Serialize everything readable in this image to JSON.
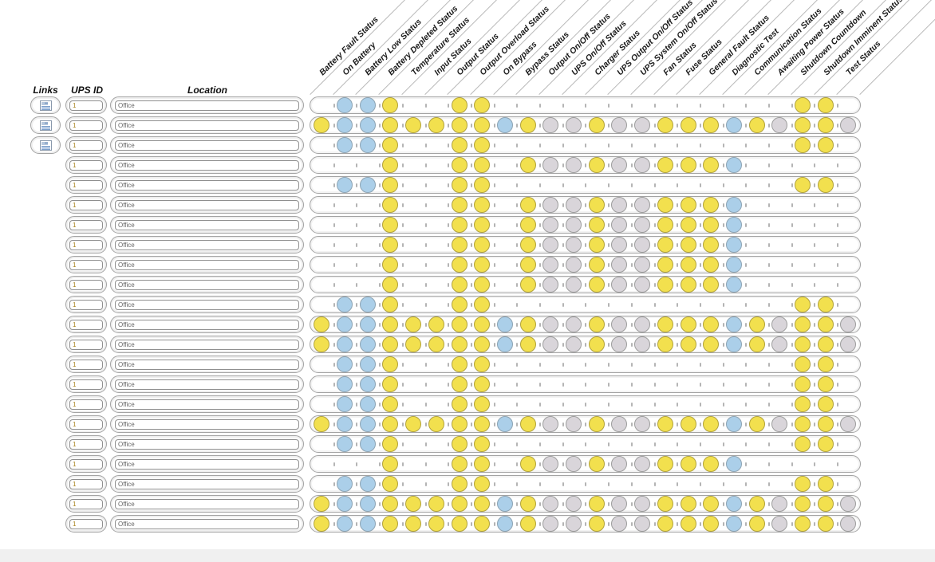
{
  "page": {
    "background": "#ffffff",
    "footer_background": "#f0f0f0"
  },
  "table": {
    "left_headers": {
      "links": "Links",
      "ups_id": "UPS ID",
      "location": "Location"
    },
    "columns": [
      "Battery Fault Status",
      "On Battery",
      "Battery Low Status",
      "Battery Depleted Status",
      "Temperature Status",
      "Input Status",
      "Output Status",
      "Output Overload Status",
      "On Bypass",
      "Bypass Status",
      "Output On/Off Status",
      "UPS On/Off Status",
      "Charger Status",
      "UPS Output On/Off Status",
      "UPS System On/Off Status",
      "Fan Status",
      "Fuse Status",
      "General Fault Status",
      "Diagnostic Test",
      "Communication Status",
      "Awaiting Power Status",
      "Shutdown Countdown",
      "Shutdown Imminent Status",
      "Test Status"
    ],
    "status_legend": {
      ".": "empty",
      "Y": "yellow",
      "B": "blue",
      "G": "gray"
    },
    "status_colors": {
      "Y": {
        "fill": "#f2e04e",
        "border": "#b1a23b"
      },
      "B": {
        "fill": "#abcfe9",
        "border": "#8da4b4"
      },
      "G": {
        "fill": "#d9d5da",
        "border": "#9d9d9d"
      }
    },
    "rows": [
      {
        "links": true,
        "ups_id": "1",
        "location": "Office",
        "status": ".BBY..YY.............YY."
      },
      {
        "links": true,
        "ups_id": "1",
        "location": "Office",
        "status": "YBBYYYYYBYGGYGGYYYBYGYYG"
      },
      {
        "links": true,
        "ups_id": "1",
        "location": "Office",
        "status": ".BBY..YY.............YY."
      },
      {
        "links": false,
        "ups_id": "1",
        "location": "Office",
        "status": "...Y..YY.YGGYGGYYYB....."
      },
      {
        "links": false,
        "ups_id": "1",
        "location": "Office",
        "status": ".BBY..YY.............YY."
      },
      {
        "links": false,
        "ups_id": "1",
        "location": "Office",
        "status": "...Y..YY.YGGYGGYYYB....."
      },
      {
        "links": false,
        "ups_id": "1",
        "location": "Office",
        "status": "...Y..YY.YGGYGGYYYB....."
      },
      {
        "links": false,
        "ups_id": "1",
        "location": "Office",
        "status": "...Y..YY.YGGYGGYYYB....."
      },
      {
        "links": false,
        "ups_id": "1",
        "location": "Office",
        "status": "...Y..YY.YGGYGGYYYB....."
      },
      {
        "links": false,
        "ups_id": "1",
        "location": "Office",
        "status": "...Y..YY.YGGYGGYYYB....."
      },
      {
        "links": false,
        "ups_id": "1",
        "location": "Office",
        "status": ".BBY..YY.............YY."
      },
      {
        "links": false,
        "ups_id": "1",
        "location": "Office",
        "status": "YBBYYYYYBYGGYGGYYYBYGYYG"
      },
      {
        "links": false,
        "ups_id": "1",
        "location": "Office",
        "status": "YBBYYYYYBYGGYGGYYYBYGYYG"
      },
      {
        "links": false,
        "ups_id": "1",
        "location": "Office",
        "status": ".BBY..YY.............YY."
      },
      {
        "links": false,
        "ups_id": "1",
        "location": "Office",
        "status": ".BBY..YY.............YY."
      },
      {
        "links": false,
        "ups_id": "1",
        "location": "Office",
        "status": ".BBY..YY.............YY."
      },
      {
        "links": false,
        "ups_id": "1",
        "location": "Office",
        "status": "YBBYYYYYBYGGYGGYYYBYGYYG"
      },
      {
        "links": false,
        "ups_id": "1",
        "location": "Office",
        "status": ".BBY..YY.............YY."
      },
      {
        "links": false,
        "ups_id": "1",
        "location": "Office",
        "status": "...Y..YY.YGGYGGYYYB....."
      },
      {
        "links": false,
        "ups_id": "1",
        "location": "Office",
        "status": ".BBY..YY.............YY."
      },
      {
        "links": false,
        "ups_id": "1",
        "location": "Office",
        "status": "YBBYYYYYBYGGYGGYYYBYGYYG"
      },
      {
        "links": false,
        "ups_id": "1",
        "location": "Office",
        "status": "YBBYYYYYBYGGYGGYYYBYGYYG"
      }
    ]
  },
  "icons": {
    "links_button": "report-icon"
  }
}
